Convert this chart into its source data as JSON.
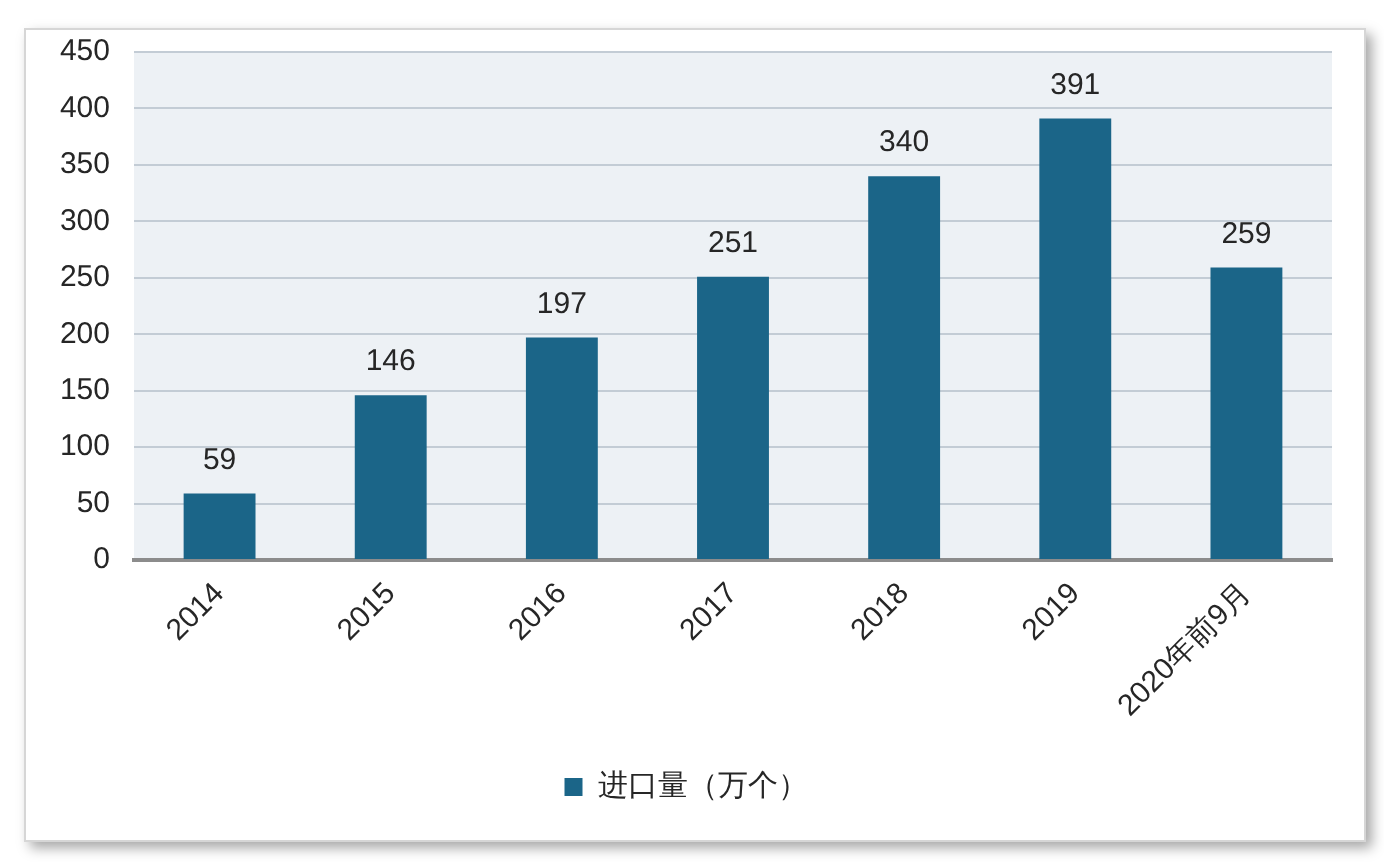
{
  "chart_data": {
    "type": "bar",
    "categories": [
      "2014",
      "2015",
      "2016",
      "2017",
      "2018",
      "2019",
      "2020年前9月"
    ],
    "series": [
      {
        "name": "进口量（万个）",
        "color": "#1b6588",
        "values": [
          59,
          146,
          197,
          251,
          340,
          391,
          259
        ]
      }
    ],
    "ylim": [
      0,
      450
    ],
    "yticks": [
      0,
      50,
      100,
      150,
      200,
      250,
      300,
      350,
      400,
      450
    ],
    "grid": "y",
    "legend": "bottom",
    "data_labels": true
  }
}
